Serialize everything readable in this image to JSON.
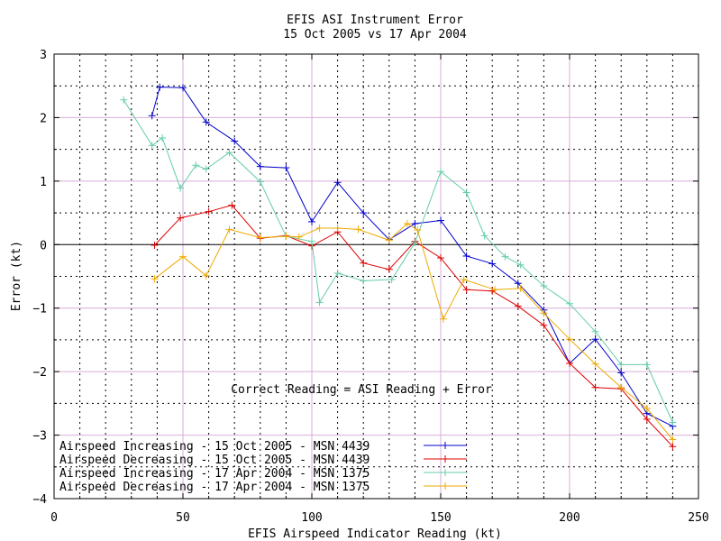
{
  "chart_data": {
    "type": "line",
    "title": "EFIS ASI Instrument Error",
    "subtitle": "15 Oct 2005 vs 17 Apr 2004",
    "xlabel": "EFIS Airspeed Indicator Reading (kt)",
    "ylabel": "Error (kt)",
    "xlim": [
      0,
      250
    ],
    "ylim": [
      -4,
      3
    ],
    "x_ticks": [
      0,
      50,
      100,
      150,
      200,
      250
    ],
    "y_ticks": [
      -4,
      -3,
      -2,
      -1,
      0,
      1,
      2,
      3
    ],
    "grid": true,
    "legend_position": "bottom-left",
    "annotation": "Correct Reading = ASI Reading + Error",
    "series": [
      {
        "name": "Airspeed Increasing - 15 Oct 2005 - MSN 4439",
        "color": "#0000cc",
        "x": [
          38,
          41,
          50,
          59,
          70,
          80,
          90,
          100,
          110,
          120,
          130,
          140,
          150,
          160,
          170,
          180,
          190,
          200,
          210,
          220,
          230,
          240
        ],
        "y": [
          2.03,
          2.48,
          2.47,
          1.93,
          1.63,
          1.23,
          1.21,
          0.36,
          0.98,
          0.5,
          0.08,
          0.33,
          0.38,
          -0.18,
          -0.3,
          -0.61,
          -1.03,
          -1.87,
          -1.49,
          -2.02,
          -2.66,
          -2.86
        ]
      },
      {
        "name": "Airspeed Decreasing - 15 Oct 2005 - MSN 4439",
        "color": "#dd0000",
        "x": [
          39,
          49,
          60,
          69,
          80,
          90,
          100,
          110,
          120,
          130,
          140,
          150,
          160,
          170,
          180,
          190,
          200,
          210,
          220,
          230,
          240
        ],
        "y": [
          -0.01,
          0.42,
          0.52,
          0.62,
          0.1,
          0.14,
          -0.02,
          0.2,
          -0.29,
          -0.39,
          0.05,
          -0.21,
          -0.71,
          -0.73,
          -0.97,
          -1.27,
          -1.87,
          -2.25,
          -2.27,
          -2.75,
          -3.18
        ]
      },
      {
        "name": "Airspeed Increasing - 17 Apr 2004 - MSN 1375",
        "color": "#66ccaa",
        "x": [
          27,
          38,
          42,
          49,
          55,
          59,
          68,
          80,
          90,
          100,
          103,
          110,
          120,
          131,
          140,
          150,
          160,
          167,
          175,
          181,
          190,
          200,
          210,
          220,
          230,
          240
        ],
        "y": [
          2.28,
          1.56,
          1.68,
          0.89,
          1.25,
          1.19,
          1.45,
          0.99,
          0.13,
          0.05,
          -0.91,
          -0.45,
          -0.57,
          -0.55,
          0.03,
          1.15,
          0.82,
          0.14,
          -0.19,
          -0.32,
          -0.65,
          -0.93,
          -1.37,
          -1.89,
          -1.89,
          -2.8
        ]
      },
      {
        "name": "Airspeed Decreasing - 17 Apr 2004 - MSN 1375",
        "color": "#eeaa00",
        "x": [
          39,
          50,
          59,
          68,
          80,
          90,
          95,
          103,
          110,
          118,
          130,
          137,
          141,
          151,
          159,
          171,
          181,
          190,
          200,
          210,
          220,
          230,
          240
        ],
        "y": [
          -0.54,
          -0.19,
          -0.49,
          0.24,
          0.11,
          0.13,
          0.12,
          0.26,
          0.26,
          0.24,
          0.07,
          0.33,
          0.23,
          -1.17,
          -0.55,
          -0.71,
          -0.69,
          -1.08,
          -1.49,
          -1.88,
          -2.25,
          -2.58,
          -3.07
        ]
      }
    ]
  }
}
